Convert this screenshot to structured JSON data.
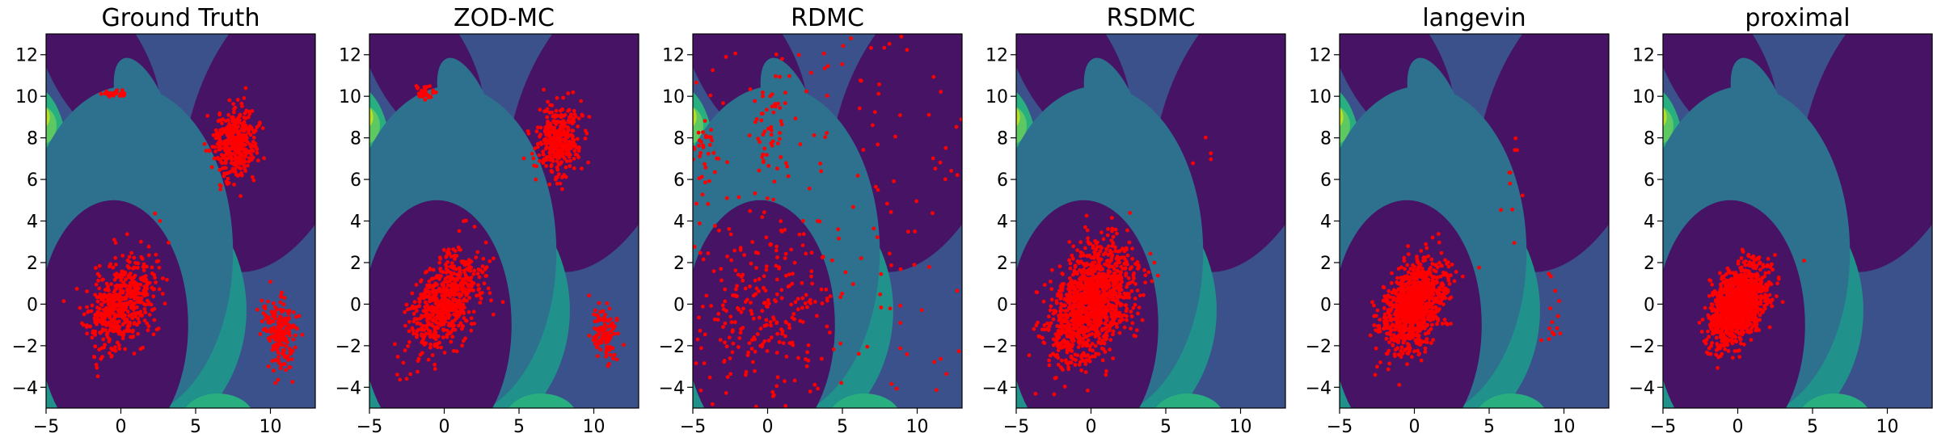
{
  "figure": {
    "description_free": true,
    "xlim": [
      -5,
      13
    ],
    "ylim": [
      -5,
      13
    ],
    "xticks": [
      -5,
      0,
      5,
      10
    ],
    "yticks": [
      -4,
      -2,
      0,
      2,
      4,
      6,
      8,
      10,
      12
    ],
    "colors": {
      "sample": "#ff0000",
      "level0": "#471365",
      "level1": "#3b518b",
      "level2": "#2d718e",
      "level3": "#21918c",
      "level4": "#29af7f",
      "level5": "#5ec962",
      "level6": "#b5de2b"
    }
  },
  "chart_data": [
    {
      "type": "scatter",
      "title": "Ground Truth",
      "profile": "gt",
      "seed": 11
    },
    {
      "type": "scatter",
      "title": "ZOD-MC",
      "profile": "zod",
      "seed": 23
    },
    {
      "type": "scatter",
      "title": "RDMC",
      "profile": "rdmc",
      "seed": 37
    },
    {
      "type": "scatter",
      "title": "RSDMC",
      "profile": "rsdmc",
      "seed": 51
    },
    {
      "type": "scatter",
      "title": "langevin",
      "profile": "langevin",
      "seed": 67
    },
    {
      "type": "scatter",
      "title": "proximal",
      "profile": "proximal",
      "seed": 83
    }
  ]
}
